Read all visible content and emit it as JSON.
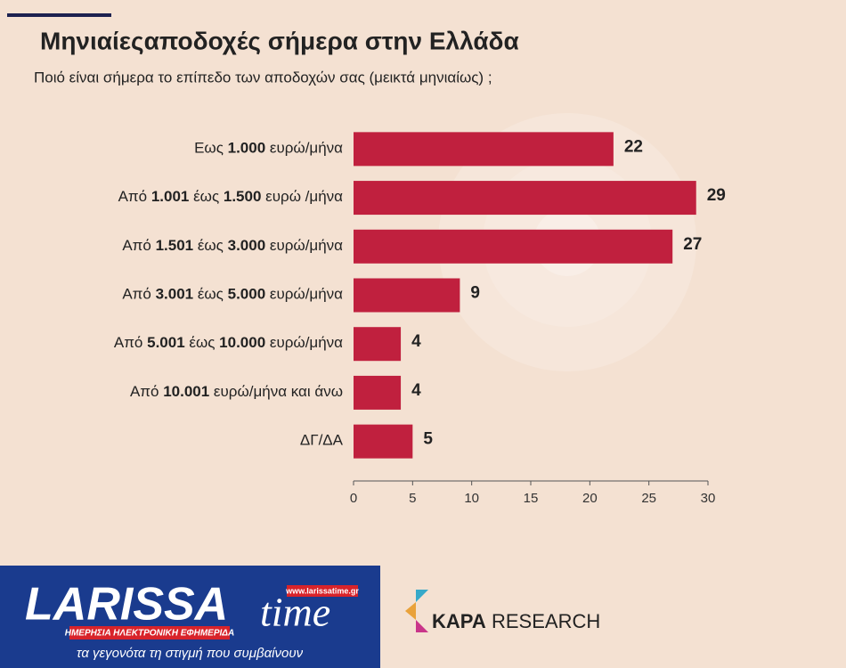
{
  "chart_data": {
    "type": "barh",
    "title": "Μηνιαίεςαποδοχές σήμερα στην Ελλάδα",
    "subtitle": "Ποιό είναι σήμερα το επίπεδο των αποδοχών σας (μεικτά μηνιαίως) ;",
    "categories": [
      "Εως 1.000 ευρώ/μήνα",
      "Από 1.001 έως  1.500 ευρώ /μήνα",
      "Από 1.501 έως 3.000 ευρώ/μήνα",
      "Από 3.001 έως 5.000 ευρώ/μήνα",
      "Από 5.001 έως 10.000 ευρώ/μήνα",
      "Από 10.001 ευρώ/μήνα και άνω",
      "ΔΓ/ΔΑ"
    ],
    "values": [
      22,
      29,
      27,
      9,
      4,
      4,
      5
    ],
    "color": "#c0203e",
    "xlim": [
      0,
      30
    ],
    "xticks": [
      0,
      5,
      10,
      15,
      20,
      25,
      30
    ]
  },
  "logos": {
    "publisher": {
      "name_main": "LARISSA",
      "name_script": "time",
      "url": "www.larissatime.gr",
      "tagline": "ΗΜΕΡΗΣΙΑ ΗΛΕΚΤΡΟΝΙΚΗ ΕΦΗΜΕΡΙΔΑ",
      "slogan": "τα γεγονότα τη στιγμή που συμβαίνουν"
    },
    "source": {
      "bold": "KAPA",
      "text": "RESEARCH"
    }
  }
}
